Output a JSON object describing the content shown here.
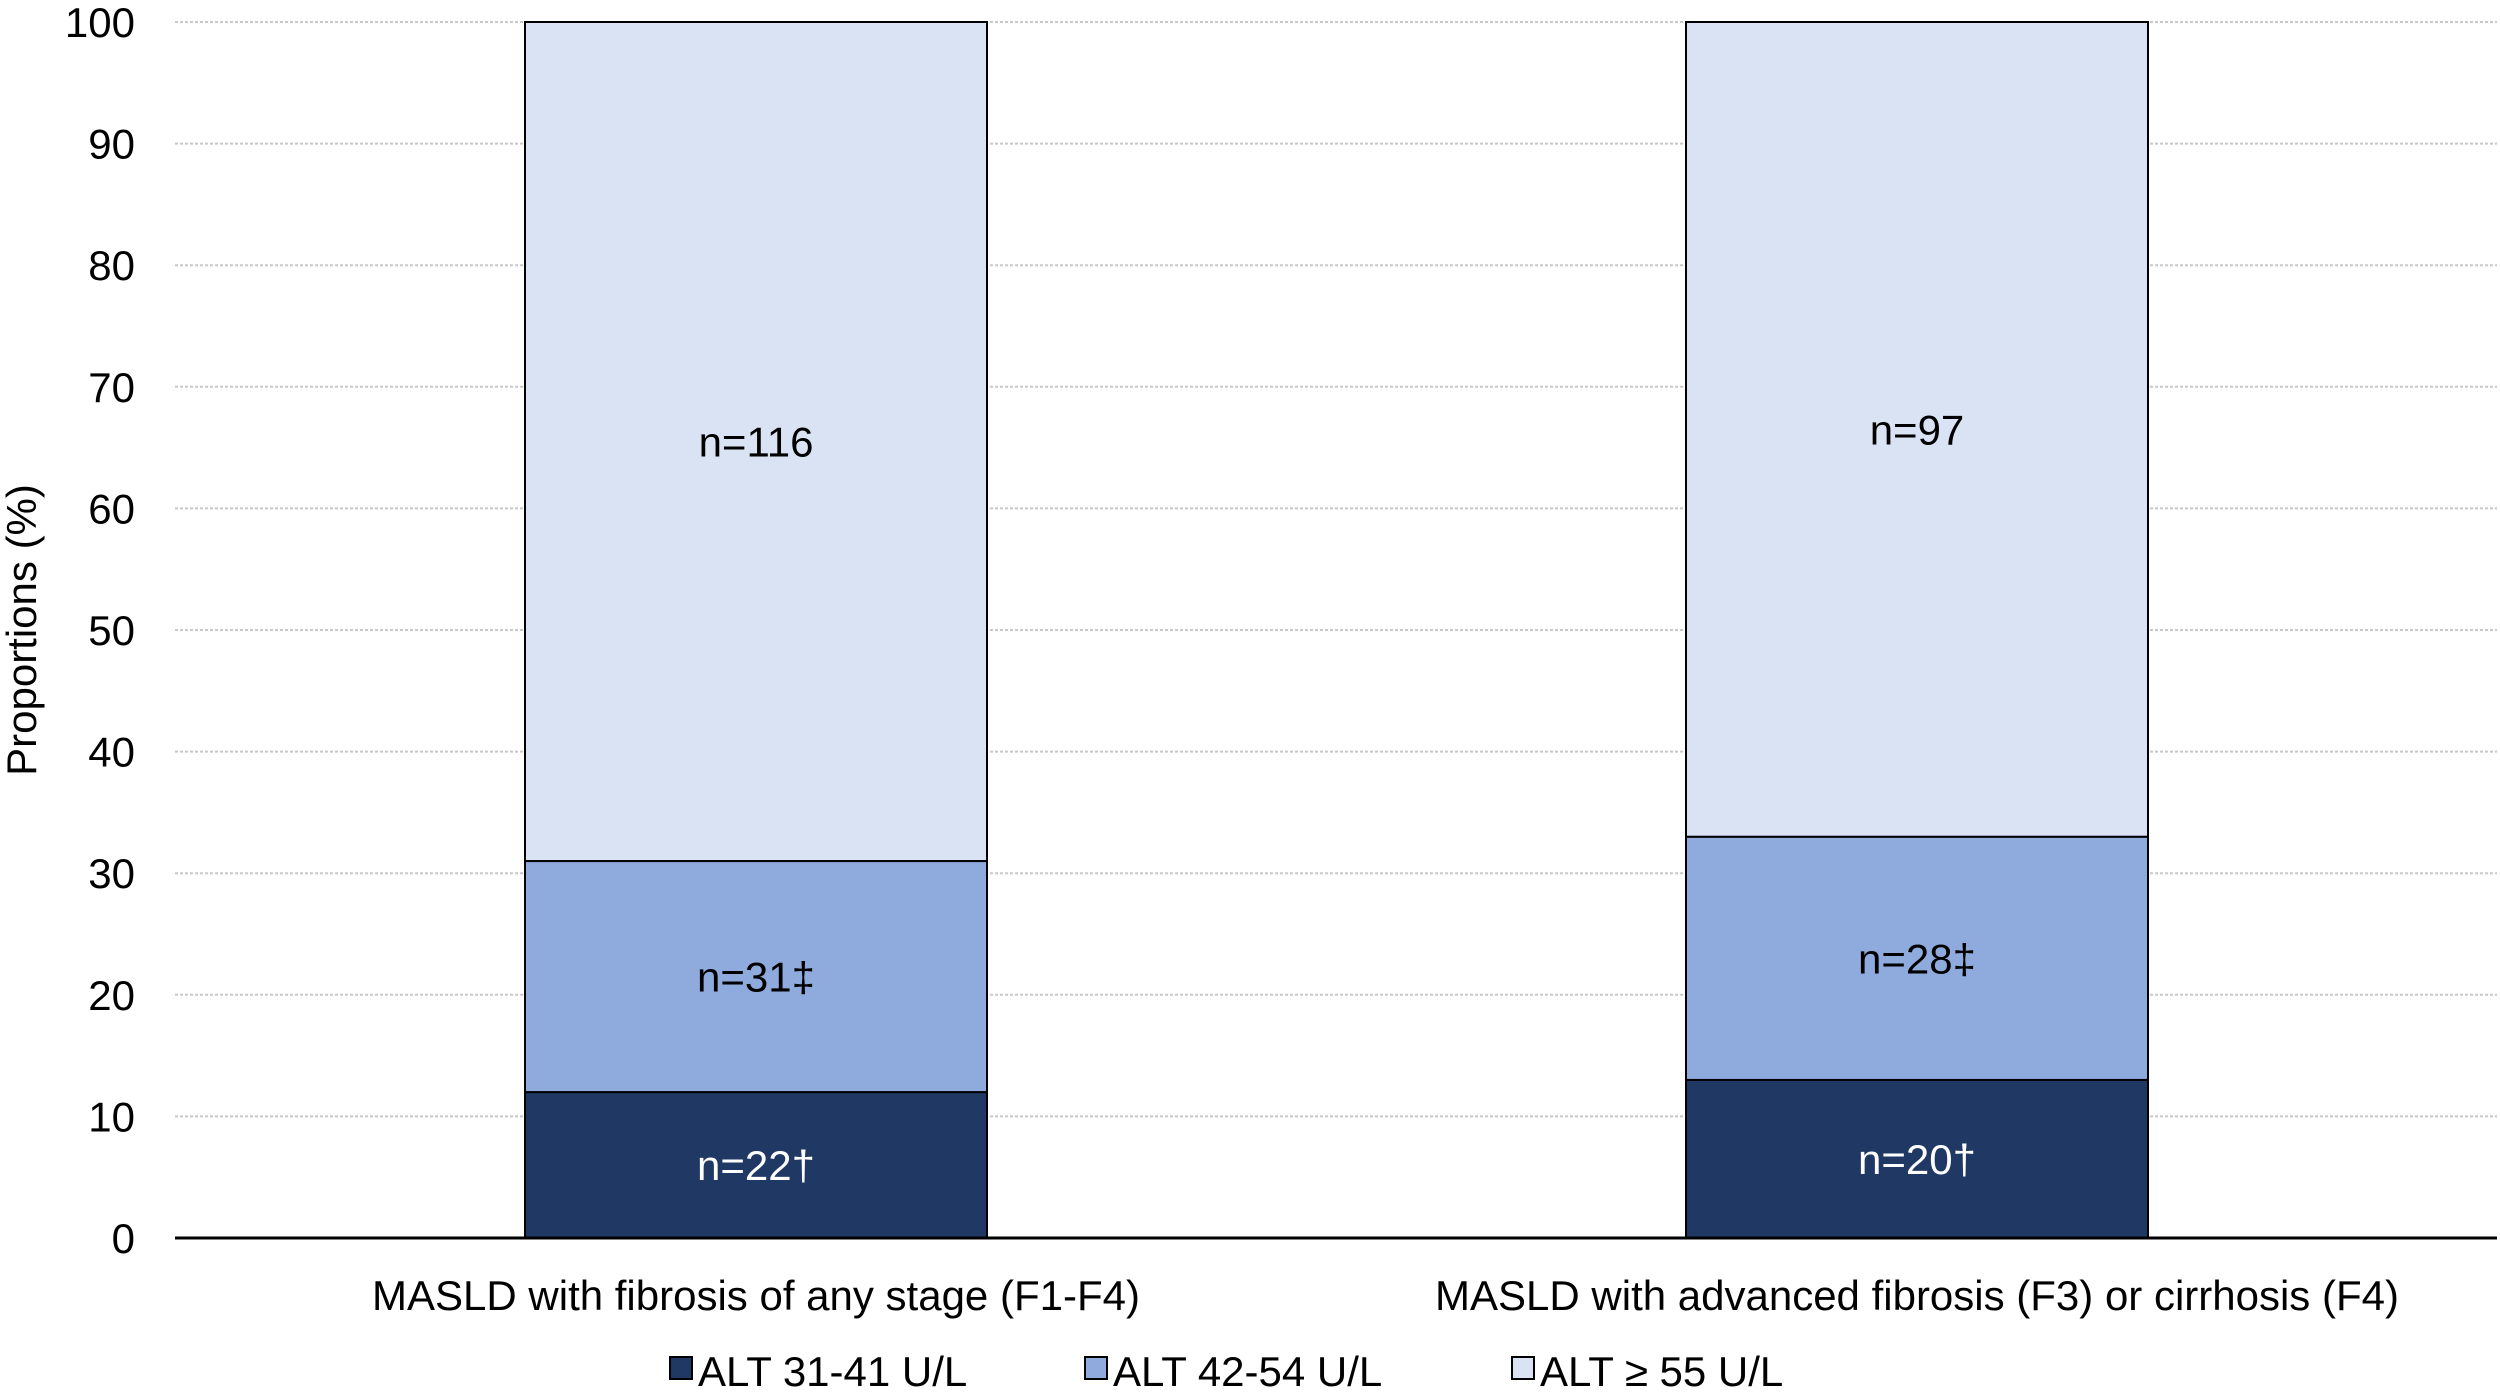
{
  "chart_data": {
    "type": "bar",
    "stacked": true,
    "title": "",
    "xlabel": "",
    "ylabel": "Proportions (%)",
    "ylim": [
      0,
      100
    ],
    "yticks": [
      0,
      10,
      20,
      30,
      40,
      50,
      60,
      70,
      80,
      90,
      100
    ],
    "grid": true,
    "legend_position": "bottom",
    "categories": [
      "MASLD with fibrosis of any stage (F1-F4)",
      "MASLD with advanced fibrosis (F3) or cirrhosis (F4)"
    ],
    "series": [
      {
        "name": "ALT 31-41 U/L",
        "color": "#203864",
        "values": [
          12,
          13
        ],
        "labels": [
          "n=22†",
          "n=20†"
        ],
        "label_color": "#ffffff"
      },
      {
        "name": "ALT 42-54 U/L",
        "color": "#8faadc",
        "values": [
          19,
          20
        ],
        "labels": [
          "n=31‡",
          "n=28‡"
        ],
        "label_color": "#000000"
      },
      {
        "name": "ALT ≥ 55 U/L",
        "color": "#dae3f3",
        "values": [
          69,
          67
        ],
        "labels": [
          "n=116",
          "n=97"
        ],
        "label_color": "#000000"
      }
    ]
  }
}
